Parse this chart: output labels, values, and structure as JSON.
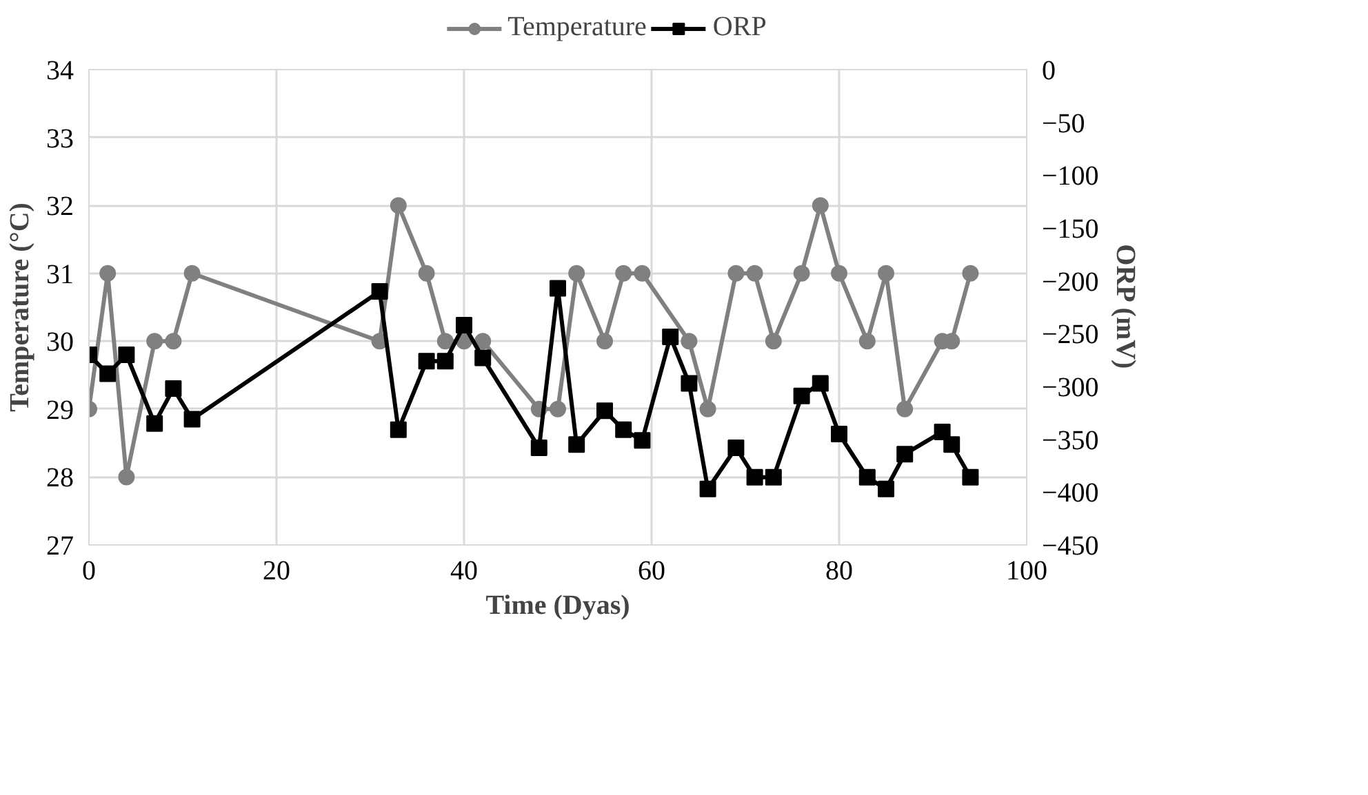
{
  "chart_data": {
    "type": "line",
    "xlabel": "Time (Dyas)",
    "ylabel": "Temperature (°C)",
    "y2label": "ORP (mV)",
    "x": [
      0,
      2,
      4,
      7,
      9,
      11,
      31,
      33,
      36,
      38,
      40,
      42,
      48,
      50,
      52,
      55,
      57,
      59,
      62,
      64,
      66,
      69,
      71,
      73,
      76,
      78,
      80,
      83,
      85,
      87,
      91,
      92,
      94
    ],
    "series": [
      {
        "name": "Temperature",
        "color": "#808080",
        "marker": "circle",
        "x": [
          0,
          2,
          4,
          7,
          9,
          11,
          31,
          33,
          36,
          38,
          40,
          42,
          48,
          50,
          52,
          55,
          57,
          59,
          64,
          66,
          69,
          71,
          73,
          76,
          78,
          80,
          83,
          85,
          87,
          91,
          92,
          94
        ],
        "values": [
          29,
          31,
          28,
          30,
          30,
          31,
          30,
          32,
          31,
          30,
          30,
          30,
          29,
          29,
          31,
          30,
          31,
          31,
          30,
          29,
          31,
          31,
          30,
          31,
          32,
          31,
          30,
          31,
          29,
          30,
          30,
          31
        ]
      },
      {
        "name": "ORP",
        "color": "#000000",
        "marker": "square",
        "axis": "y2",
        "values": [
          -270,
          -288,
          -270,
          -335,
          -302,
          -331,
          -210,
          -341,
          -276,
          -276,
          -242,
          -273,
          -358,
          -207,
          -355,
          -323,
          -341,
          -351,
          -253,
          -297,
          -397,
          -358,
          -386,
          -386,
          -309,
          -297,
          -345,
          -386,
          -397,
          -364,
          -343,
          -355,
          -386
        ]
      }
    ],
    "xlim": [
      0,
      100
    ],
    "xticks": [
      0,
      20,
      40,
      60,
      80,
      100
    ],
    "ylim": [
      27,
      34
    ],
    "yticks": [
      27,
      28,
      29,
      30,
      31,
      32,
      33,
      34
    ],
    "y2lim": [
      -450,
      0
    ],
    "y2ticks": [
      -450,
      -400,
      -350,
      -300,
      -250,
      -200,
      -150,
      -100,
      -50,
      0
    ],
    "grid": true,
    "legend": "top",
    "line_style": "solid"
  }
}
